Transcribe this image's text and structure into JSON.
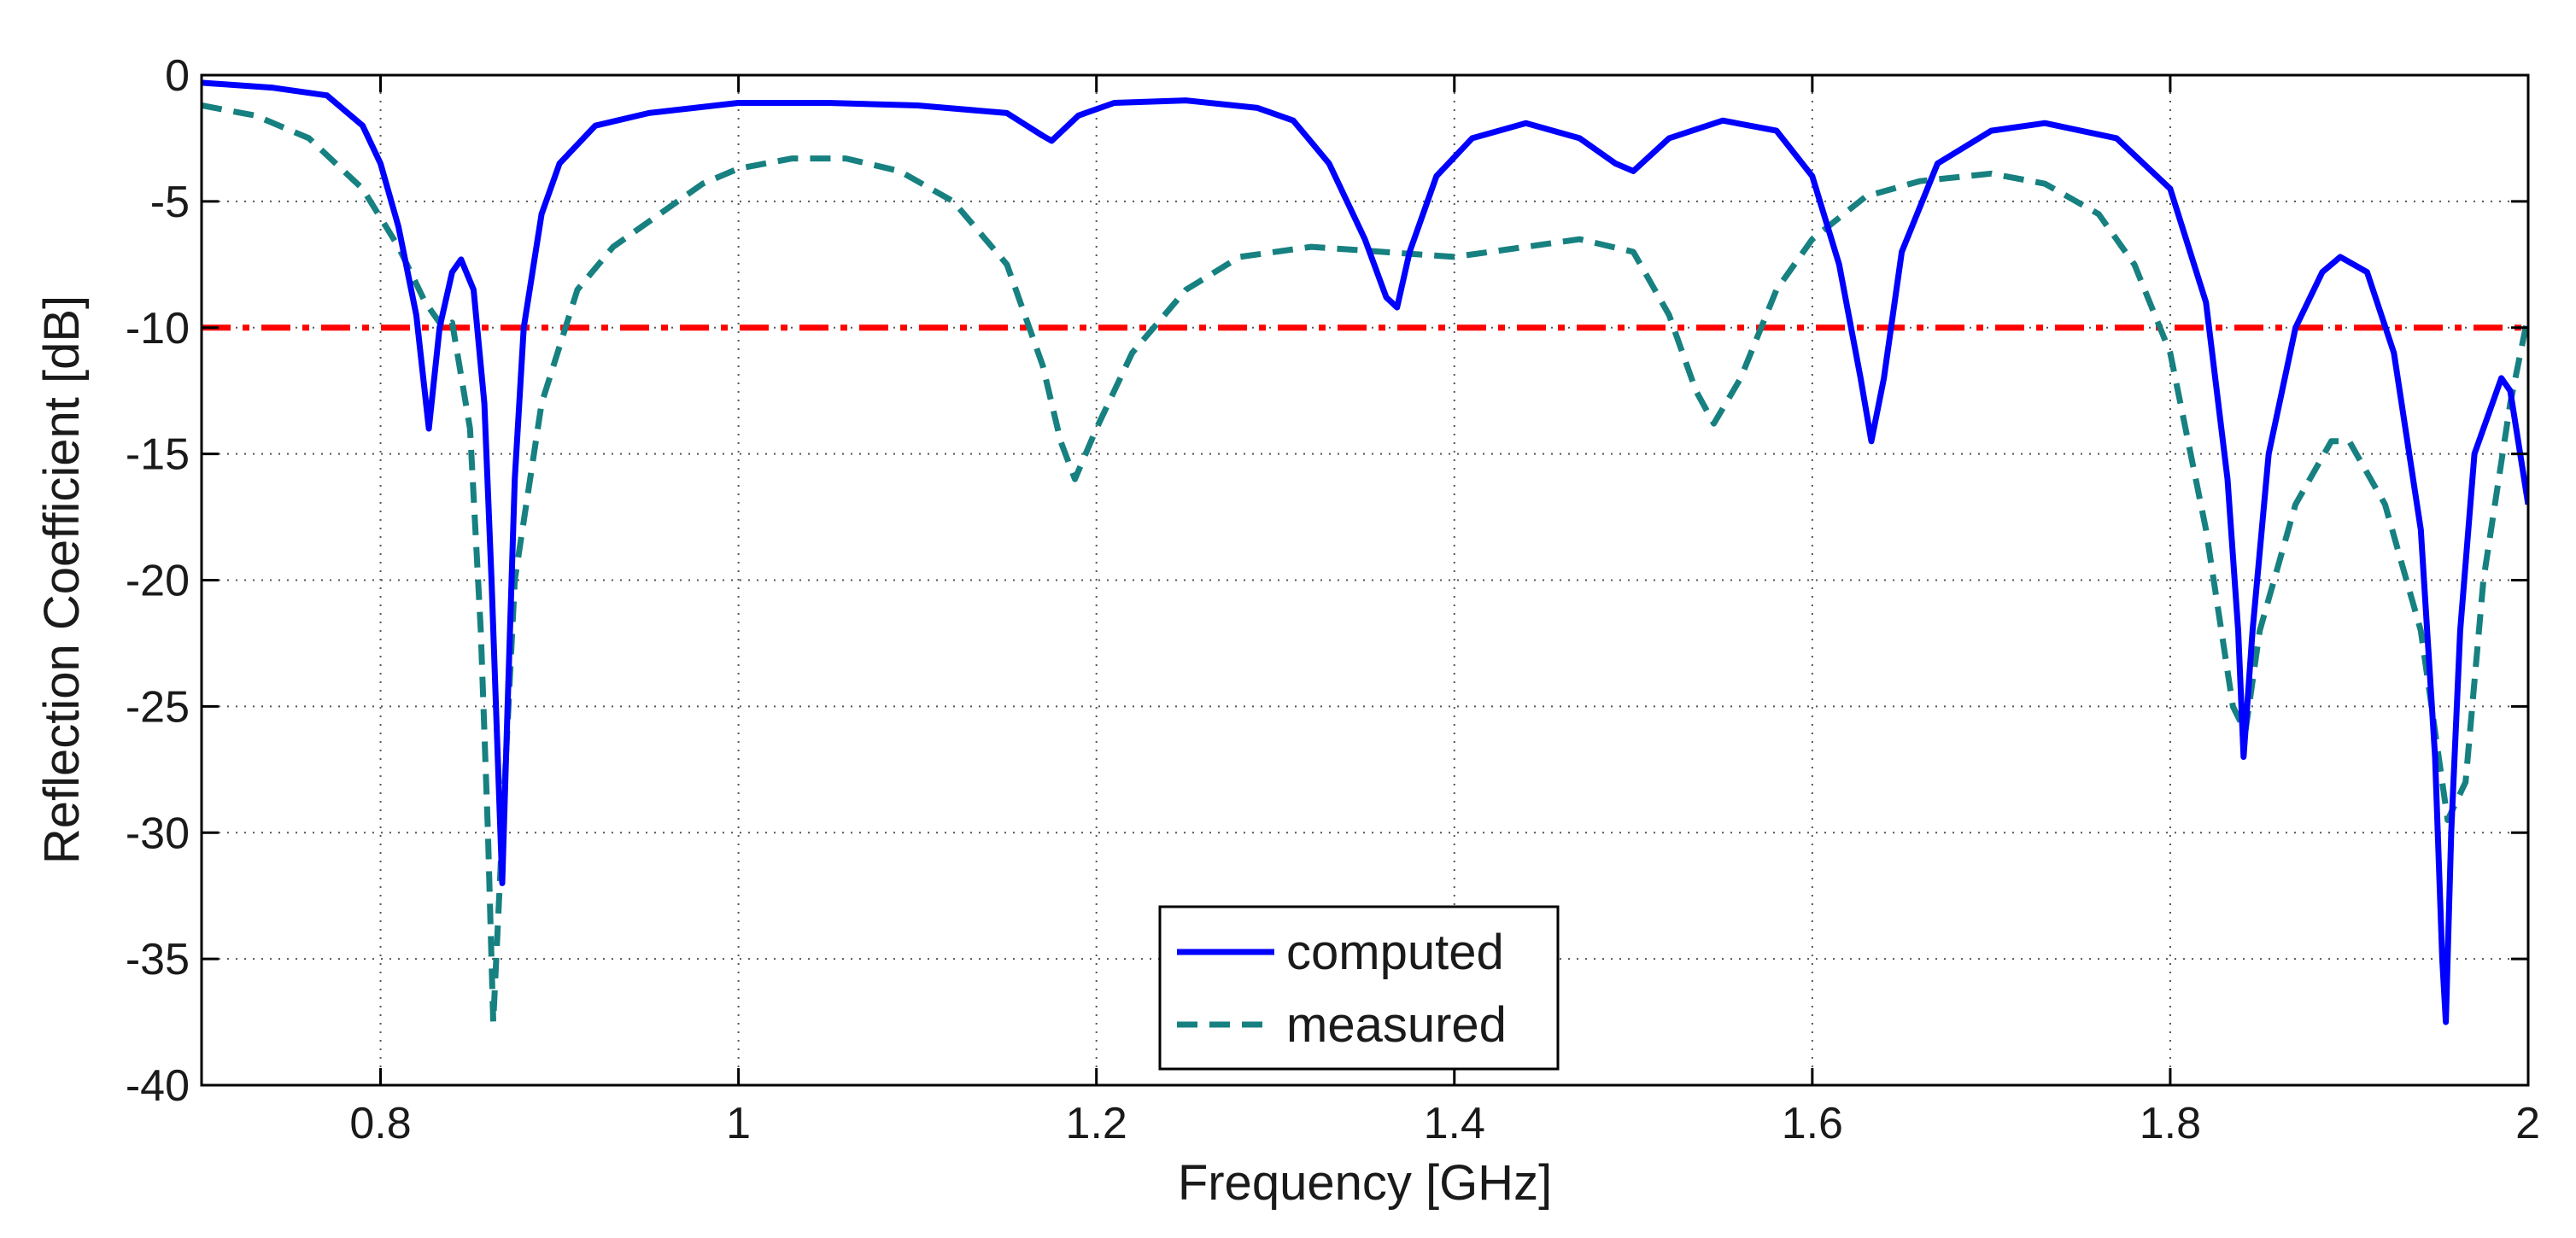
{
  "chart_data": {
    "type": "line",
    "title": "",
    "xlabel": "Frequency [GHz]",
    "ylabel": "Reflection Coefficient [dB]",
    "xlim": [
      0.7,
      2.0
    ],
    "ylim": [
      -40,
      0
    ],
    "grid": true,
    "legend_position": "bottom-center",
    "x_ticks": [
      0.8,
      1.0,
      1.2,
      1.4,
      1.6,
      1.8,
      2.0
    ],
    "x_tick_labels": [
      "0.8",
      "1",
      "1.2",
      "1.4",
      "1.6",
      "1.8",
      "2"
    ],
    "y_ticks": [
      0,
      -5,
      -10,
      -15,
      -20,
      -25,
      -30,
      -35,
      -40
    ],
    "y_tick_labels": [
      "0",
      "-5",
      "-10",
      "-15",
      "-20",
      "-25",
      "-30",
      "-35",
      "-40"
    ],
    "reference_line": {
      "y": -10,
      "color": "#ff0000",
      "style": "dash-dot"
    },
    "series": [
      {
        "name": "computed",
        "color": "#0000ff",
        "style": "solid",
        "points": [
          [
            0.7,
            -0.3
          ],
          [
            0.74,
            -0.5
          ],
          [
            0.77,
            -0.8
          ],
          [
            0.79,
            -2.0
          ],
          [
            0.8,
            -3.5
          ],
          [
            0.81,
            -6.0
          ],
          [
            0.82,
            -9.5
          ],
          [
            0.827,
            -14.0
          ],
          [
            0.833,
            -10.0
          ],
          [
            0.84,
            -7.8
          ],
          [
            0.845,
            -7.3
          ],
          [
            0.852,
            -8.5
          ],
          [
            0.858,
            -13.0
          ],
          [
            0.862,
            -20.0
          ],
          [
            0.866,
            -28.0
          ],
          [
            0.868,
            -32.0
          ],
          [
            0.871,
            -25.0
          ],
          [
            0.875,
            -16.0
          ],
          [
            0.88,
            -10.0
          ],
          [
            0.89,
            -5.5
          ],
          [
            0.9,
            -3.5
          ],
          [
            0.92,
            -2.0
          ],
          [
            0.95,
            -1.5
          ],
          [
            1.0,
            -1.1
          ],
          [
            1.05,
            -1.1
          ],
          [
            1.1,
            -1.2
          ],
          [
            1.15,
            -1.5
          ],
          [
            1.17,
            -2.4
          ],
          [
            1.175,
            -2.6
          ],
          [
            1.19,
            -1.6
          ],
          [
            1.21,
            -1.1
          ],
          [
            1.25,
            -1.0
          ],
          [
            1.29,
            -1.3
          ],
          [
            1.31,
            -1.8
          ],
          [
            1.33,
            -3.5
          ],
          [
            1.35,
            -6.5
          ],
          [
            1.362,
            -8.8
          ],
          [
            1.368,
            -9.2
          ],
          [
            1.375,
            -7.0
          ],
          [
            1.39,
            -4.0
          ],
          [
            1.41,
            -2.5
          ],
          [
            1.44,
            -1.9
          ],
          [
            1.47,
            -2.5
          ],
          [
            1.49,
            -3.5
          ],
          [
            1.5,
            -3.8
          ],
          [
            1.52,
            -2.5
          ],
          [
            1.55,
            -1.8
          ],
          [
            1.58,
            -2.2
          ],
          [
            1.6,
            -4.0
          ],
          [
            1.615,
            -7.5
          ],
          [
            1.627,
            -12.0
          ],
          [
            1.633,
            -14.5
          ],
          [
            1.64,
            -12.0
          ],
          [
            1.65,
            -7.0
          ],
          [
            1.67,
            -3.5
          ],
          [
            1.7,
            -2.2
          ],
          [
            1.73,
            -1.9
          ],
          [
            1.77,
            -2.5
          ],
          [
            1.8,
            -4.5
          ],
          [
            1.82,
            -9.0
          ],
          [
            1.832,
            -16.0
          ],
          [
            1.838,
            -22.0
          ],
          [
            1.841,
            -27.0
          ],
          [
            1.846,
            -22.0
          ],
          [
            1.855,
            -15.0
          ],
          [
            1.87,
            -10.0
          ],
          [
            1.885,
            -7.8
          ],
          [
            1.895,
            -7.2
          ],
          [
            1.91,
            -7.8
          ],
          [
            1.925,
            -11.0
          ],
          [
            1.94,
            -18.0
          ],
          [
            1.948,
            -27.0
          ],
          [
            1.952,
            -35.0
          ],
          [
            1.954,
            -37.5
          ],
          [
            1.957,
            -30.0
          ],
          [
            1.962,
            -22.0
          ],
          [
            1.97,
            -15.0
          ],
          [
            1.985,
            -12.0
          ],
          [
            1.99,
            -12.5
          ],
          [
            2.0,
            -17.0
          ]
        ]
      },
      {
        "name": "measured",
        "color": "#178080",
        "style": "dashed",
        "points": [
          [
            0.7,
            -1.2
          ],
          [
            0.73,
            -1.6
          ],
          [
            0.76,
            -2.5
          ],
          [
            0.79,
            -4.5
          ],
          [
            0.81,
            -6.8
          ],
          [
            0.825,
            -9.0
          ],
          [
            0.835,
            -10.0
          ],
          [
            0.84,
            -9.8
          ],
          [
            0.85,
            -14.0
          ],
          [
            0.856,
            -22.0
          ],
          [
            0.86,
            -30.0
          ],
          [
            0.863,
            -37.5
          ],
          [
            0.868,
            -30.0
          ],
          [
            0.875,
            -20.0
          ],
          [
            0.89,
            -13.0
          ],
          [
            0.91,
            -8.5
          ],
          [
            0.93,
            -6.8
          ],
          [
            0.95,
            -5.8
          ],
          [
            0.98,
            -4.3
          ],
          [
            1.0,
            -3.7
          ],
          [
            1.03,
            -3.3
          ],
          [
            1.06,
            -3.3
          ],
          [
            1.09,
            -3.8
          ],
          [
            1.12,
            -5.0
          ],
          [
            1.15,
            -7.5
          ],
          [
            1.17,
            -11.5
          ],
          [
            1.18,
            -14.5
          ],
          [
            1.188,
            -16.0
          ],
          [
            1.2,
            -14.0
          ],
          [
            1.22,
            -11.0
          ],
          [
            1.25,
            -8.5
          ],
          [
            1.28,
            -7.2
          ],
          [
            1.32,
            -6.8
          ],
          [
            1.36,
            -7.0
          ],
          [
            1.4,
            -7.2
          ],
          [
            1.44,
            -6.8
          ],
          [
            1.47,
            -6.5
          ],
          [
            1.5,
            -7.0
          ],
          [
            1.52,
            -9.5
          ],
          [
            1.535,
            -12.5
          ],
          [
            1.545,
            -13.8
          ],
          [
            1.56,
            -12.0
          ],
          [
            1.58,
            -8.5
          ],
          [
            1.6,
            -6.5
          ],
          [
            1.63,
            -4.8
          ],
          [
            1.66,
            -4.2
          ],
          [
            1.7,
            -3.9
          ],
          [
            1.73,
            -4.3
          ],
          [
            1.76,
            -5.5
          ],
          [
            1.78,
            -7.5
          ],
          [
            1.8,
            -11.0
          ],
          [
            1.82,
            -18.0
          ],
          [
            1.835,
            -25.0
          ],
          [
            1.842,
            -26.0
          ],
          [
            1.85,
            -22.0
          ],
          [
            1.87,
            -17.0
          ],
          [
            1.89,
            -14.5
          ],
          [
            1.9,
            -14.5
          ],
          [
            1.92,
            -17.0
          ],
          [
            1.94,
            -22.0
          ],
          [
            1.955,
            -29.5
          ],
          [
            1.965,
            -28.0
          ],
          [
            1.975,
            -20.0
          ],
          [
            1.99,
            -13.0
          ],
          [
            2.0,
            -9.5
          ]
        ]
      }
    ]
  }
}
